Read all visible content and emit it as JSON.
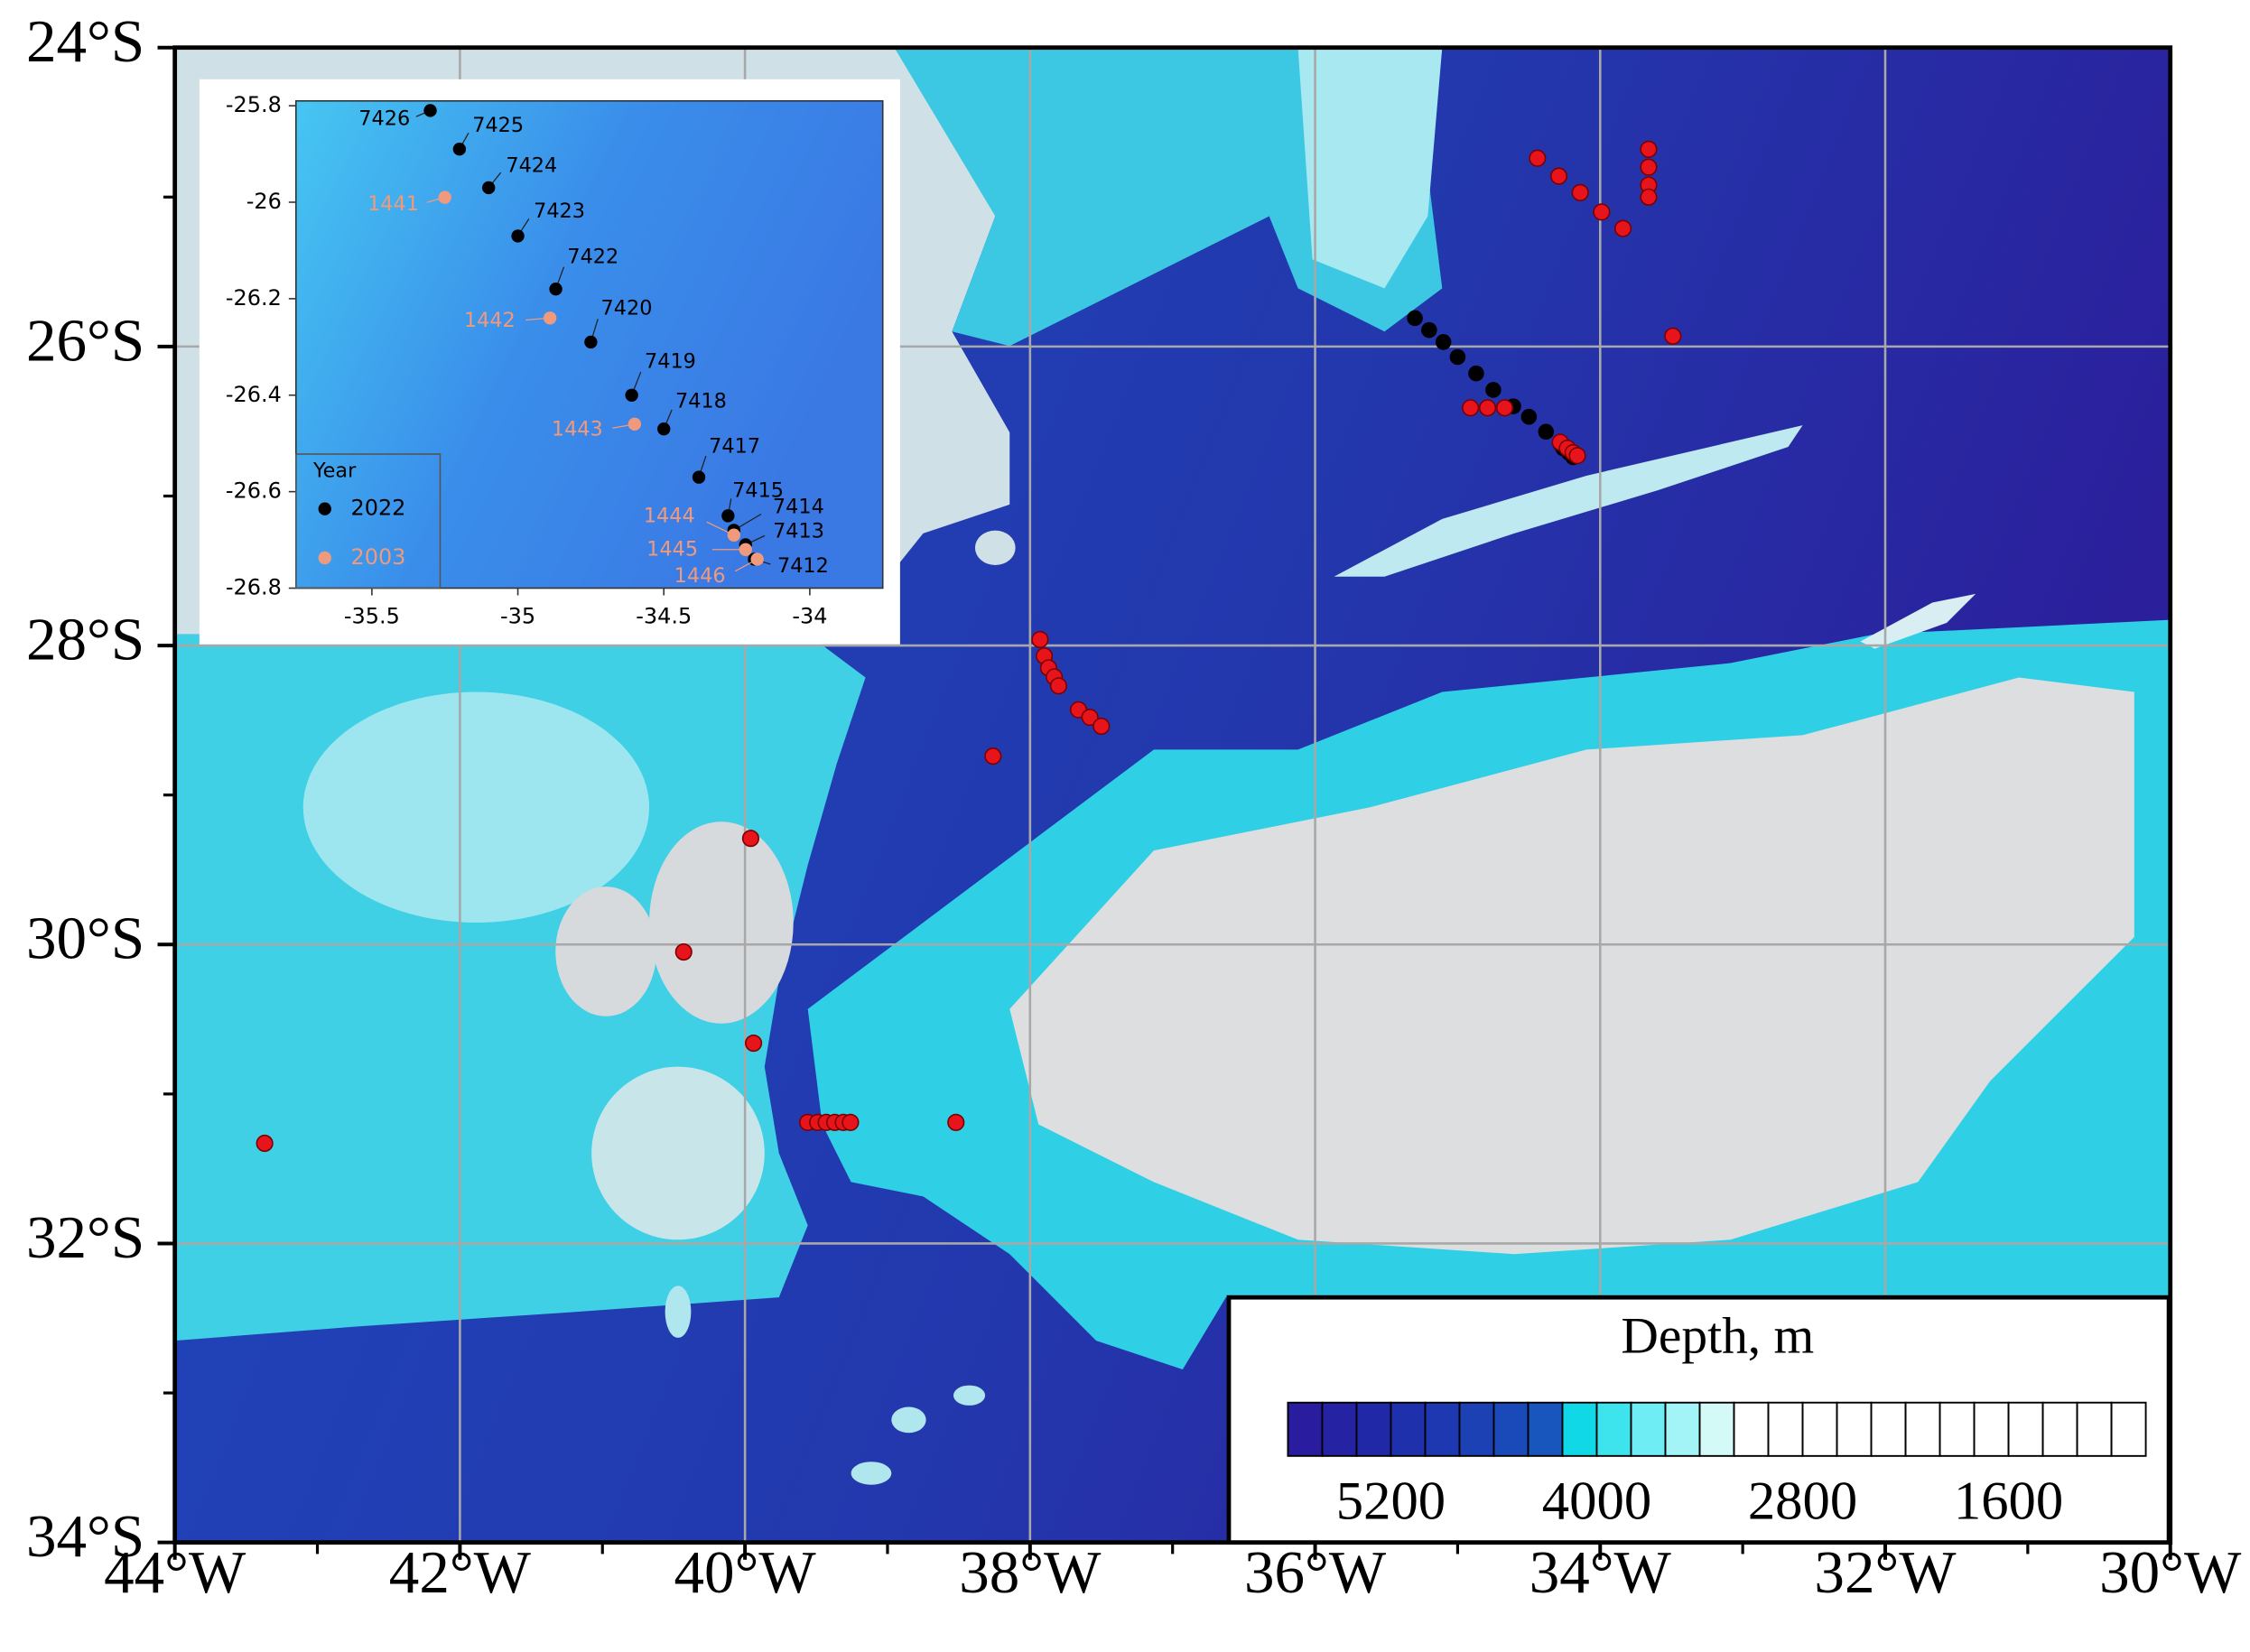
{
  "map": {
    "type": "map",
    "xlim": [
      -44,
      -30
    ],
    "ylim": [
      -34,
      -24
    ],
    "xticks": [
      {
        "value": -44,
        "label": "44°W"
      },
      {
        "value": -42,
        "label": "42°W"
      },
      {
        "value": -40,
        "label": "40°W"
      },
      {
        "value": -38,
        "label": "38°W"
      },
      {
        "value": -36,
        "label": "36°W"
      },
      {
        "value": -34,
        "label": "34°W"
      },
      {
        "value": -32,
        "label": "32°W"
      },
      {
        "value": -30,
        "label": "30°W"
      }
    ],
    "yticks": [
      {
        "value": -24,
        "label": "24°S"
      },
      {
        "value": -26,
        "label": "26°S"
      },
      {
        "value": -28,
        "label": "28°S"
      },
      {
        "value": -30,
        "label": "30°S"
      },
      {
        "value": -32,
        "label": "32°S"
      },
      {
        "value": -34,
        "label": "34°S"
      }
    ],
    "xticks_minor": [
      -43,
      -41,
      -39,
      -37,
      -35,
      -33,
      -31
    ],
    "yticks_minor": [
      -25,
      -27,
      -29,
      -31,
      -33
    ],
    "grid": true,
    "stations": {
      "color": "#e8141c",
      "x": [
        -34.44,
        -34.29,
        -34.14,
        -33.99,
        -33.84,
        -33.66,
        -33.66,
        -33.66,
        -33.66,
        -33.49,
        -34.91,
        -34.79,
        -34.67,
        -34.28,
        -34.23,
        -34.19,
        -34.16,
        -37.93,
        -37.9,
        -37.87,
        -37.83,
        -37.8,
        -37.66,
        -37.58,
        -37.5,
        -38.26,
        -39.96,
        -40.43,
        -39.94,
        -39.56,
        -39.49,
        -39.43,
        -39.37,
        -39.31,
        -39.26,
        -38.52,
        -43.37
      ],
      "y": [
        -24.74,
        -24.86,
        -24.97,
        -25.1,
        -25.21,
        -24.68,
        -24.8,
        -24.92,
        -25.0,
        -25.93,
        -26.41,
        -26.41,
        -26.41,
        -26.64,
        -26.68,
        -26.71,
        -26.73,
        -27.96,
        -28.07,
        -28.15,
        -28.21,
        -28.27,
        -28.43,
        -28.48,
        -28.54,
        -28.74,
        -29.29,
        -30.05,
        -30.66,
        -31.19,
        -31.19,
        -31.19,
        -31.19,
        -31.19,
        -31.19,
        -31.19,
        -31.33
      ]
    }
  },
  "inset": {
    "type": "scatter",
    "xlim": [
      -35.76,
      -33.75
    ],
    "ylim": [
      -26.8,
      -25.79
    ],
    "xticks": [
      -35.5,
      -35,
      -34.5,
      -34
    ],
    "yticks": [
      -25.8,
      -26,
      -26.2,
      -26.4,
      -26.6,
      -26.8
    ],
    "legend_title": "Year",
    "legend": "lower left",
    "series": [
      {
        "name": "2022",
        "color": "#000000",
        "x": [
          -35.3,
          -35.2,
          -35.1,
          -35.0,
          -34.87,
          -34.75,
          -34.61,
          -34.5,
          -34.38,
          -34.28,
          -34.26,
          -34.22,
          -34.19
        ],
        "y": [
          -25.81,
          -25.89,
          -25.97,
          -26.07,
          -26.18,
          -26.29,
          -26.4,
          -26.47,
          -26.57,
          -26.65,
          -26.68,
          -26.71,
          -26.74
        ],
        "labels": [
          "7426",
          "7425",
          "7424",
          "7423",
          "7422",
          "7420",
          "7419",
          "7418",
          "7417",
          "7415",
          "7414",
          "7413",
          "7412"
        ]
      },
      {
        "name": "2003",
        "color": "#ef9a7c",
        "x": [
          -35.25,
          -34.89,
          -34.6,
          -34.26,
          -34.22,
          -34.18
        ],
        "y": [
          -25.99,
          -26.24,
          -26.46,
          -26.69,
          -26.72,
          -26.74
        ],
        "labels": [
          "1441",
          "1442",
          "1443",
          "1444",
          "1445",
          "1446"
        ]
      }
    ]
  },
  "depth_legend": {
    "title": "Depth, m",
    "clim": [
      5800,
      800
    ],
    "ticks": [
      5200,
      4000,
      2800,
      1600
    ],
    "colors": [
      "#2a1c9e",
      "#2622a4",
      "#2128a8",
      "#1f30ad",
      "#1d38b1",
      "#1b41b5",
      "#1a4ab9",
      "#1856bd",
      "#10d8e6",
      "#3de4ee",
      "#6eeef4",
      "#a2f4f6",
      "#d4faf8",
      "#ffffff",
      "#ffffff",
      "#ffffff",
      "#ffffff",
      "#ffffff",
      "#ffffff",
      "#ffffff",
      "#ffffff",
      "#ffffff",
      "#ffffff",
      "#ffffff",
      "#ffffff"
    ]
  }
}
